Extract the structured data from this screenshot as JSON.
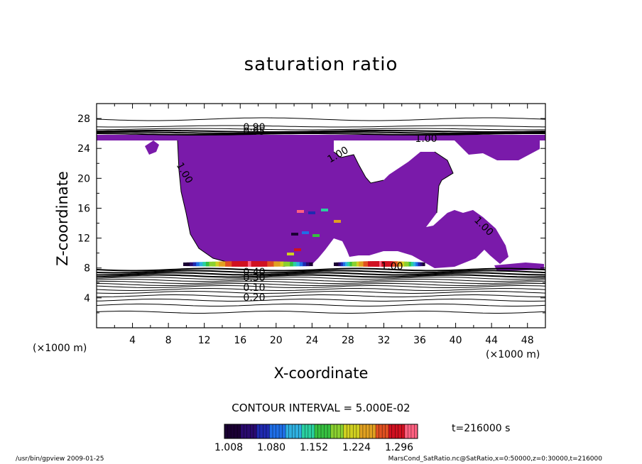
{
  "chart_data": {
    "type": "heatmap",
    "title": "saturation ratio",
    "xlabel": "X-coordinate",
    "ylabel": "Z-coordinate",
    "x_unit": "(×1000 m)",
    "xlim": [
      0,
      50
    ],
    "ylim": [
      0,
      30
    ],
    "x_ticks": [
      4,
      8,
      12,
      16,
      20,
      24,
      28,
      32,
      36,
      40,
      44,
      48
    ],
    "y_ticks": [
      4,
      8,
      12,
      16,
      20,
      24,
      28
    ],
    "contour_labels": [
      "0.10",
      "0.20",
      "0.30",
      "0.40",
      "0.90",
      "0.95",
      "1.00",
      "1.00",
      "1.00",
      "1.00",
      "1.00"
    ],
    "contour_interval": "CONTOUR INTERVAL = 5.000E-02",
    "colorbar": {
      "ticks": [
        "1.008",
        "1.080",
        "1.152",
        "1.224",
        "1.296"
      ],
      "colors": [
        "#1a0033",
        "#2a0a6e",
        "#1f2ab0",
        "#1f6ee6",
        "#2fb0e0",
        "#2ad0a0",
        "#36c040",
        "#8ad030",
        "#d0d020",
        "#e0a020",
        "#e05020",
        "#d01020",
        "#ff6080"
      ]
    },
    "fill_color": "#7a1aaa",
    "time_label": "t=216000 s"
  },
  "footer": {
    "left": "/usr/bin/gpview  2009-01-25",
    "right": "MarsCond_SatRatio.nc@SatRatio,x=0:50000,z=0:30000,t=216000"
  }
}
